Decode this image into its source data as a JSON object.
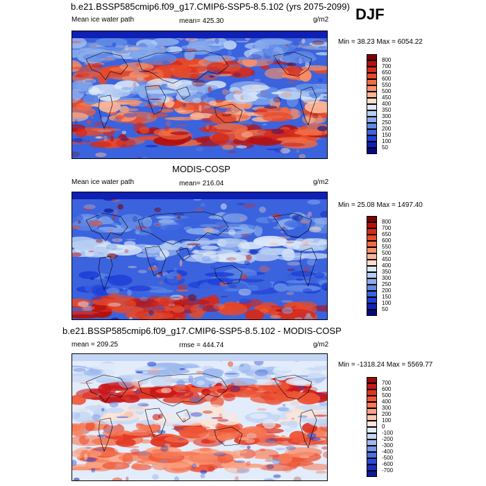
{
  "header": {
    "season": "DJF"
  },
  "panels": [
    {
      "title": "b.e21.BSSP585cmip6.f09_g17.CMIP6-SSP5-8.5.102 (yrs 2075-2099)",
      "left": "Mean ice water path",
      "center": "mean= 425.30",
      "units": "g/m2",
      "minmax": "Min =  38.23 Max = 6054.22",
      "colorbar": {
        "labels": [
          "800",
          "700",
          "650",
          "600",
          "550",
          "500",
          "450",
          "400",
          "350",
          "300",
          "250",
          "200",
          "150",
          "100",
          "50"
        ],
        "colors": [
          "#7f0000",
          "#b40f0f",
          "#d42a1c",
          "#e64a2a",
          "#f06a44",
          "#f7906a",
          "#fbb595",
          "#fdddc8",
          "#dce8f8",
          "#b5cdf2",
          "#8aaceb",
          "#6089e4",
          "#3b63de",
          "#1f3fd6",
          "#0f20b4",
          "#040a82"
        ]
      },
      "style": "hot"
    },
    {
      "title": "MODIS-COSP",
      "left": "Mean ice water path",
      "center": "mean= 216.04",
      "units": "g/m2",
      "minmax": "Min =  25.08 Max = 1497.40",
      "colorbar": {
        "labels": [
          "800",
          "700",
          "650",
          "600",
          "550",
          "500",
          "450",
          "400",
          "350",
          "300",
          "250",
          "200",
          "150",
          "100",
          "50"
        ],
        "colors": [
          "#7f0000",
          "#b40f0f",
          "#d42a1c",
          "#e64a2a",
          "#f06a44",
          "#f7906a",
          "#fbb595",
          "#fdddc8",
          "#dce8f8",
          "#b5cdf2",
          "#8aaceb",
          "#6089e4",
          "#3b63de",
          "#1f3fd6",
          "#0f20b4",
          "#040a82"
        ]
      },
      "style": "cold"
    },
    {
      "title": "b.e21.BSSP585cmip6.f09_g17.CMIP6-SSP5-8.5.102 - MODIS-COSP",
      "left": "mean = 209.25",
      "center": "rmse = 444.74",
      "units": "g/m2",
      "minmax": "Min = -1318.24 Max = 5569.77",
      "colorbar": {
        "labels": [
          "700",
          "600",
          "500",
          "400",
          "300",
          "200",
          "100",
          "0",
          "-100",
          "-200",
          "-300",
          "-400",
          "-500",
          "-600",
          "-700"
        ],
        "colors": [
          "#9a0a0a",
          "#c8161a",
          "#e0321f",
          "#ee5535",
          "#f67a56",
          "#faa282",
          "#fcc7ae",
          "#fde4d6",
          "#e2ecfa",
          "#c4d6f4",
          "#9db9ee",
          "#7497e6",
          "#4a70dd",
          "#2a4bd5",
          "#1630c4",
          "#0a1a9a"
        ]
      },
      "style": "diff"
    }
  ],
  "chart_data": [
    {
      "type": "heatmap",
      "title": "b.e21.BSSP585cmip6.f09_g17.CMIP6-SSP5-8.5.102 (yrs 2075-2099)",
      "variable": "Mean ice water path",
      "units": "g/m2",
      "mean": 425.3,
      "min": 38.23,
      "max": 6054.22,
      "levels": [
        50,
        100,
        150,
        200,
        250,
        300,
        350,
        400,
        450,
        500,
        550,
        600,
        650,
        700,
        800
      ]
    },
    {
      "type": "heatmap",
      "title": "MODIS-COSP",
      "variable": "Mean ice water path",
      "units": "g/m2",
      "mean": 216.04,
      "min": 25.08,
      "max": 1497.4,
      "levels": [
        50,
        100,
        150,
        200,
        250,
        300,
        350,
        400,
        450,
        500,
        550,
        600,
        650,
        700,
        800
      ]
    },
    {
      "type": "heatmap",
      "title": "b.e21.BSSP585cmip6.f09_g17.CMIP6-SSP5-8.5.102 - MODIS-COSP",
      "units": "g/m2",
      "mean": 209.25,
      "rmse": 444.74,
      "min": -1318.24,
      "max": 5569.77,
      "levels": [
        -700,
        -600,
        -500,
        -400,
        -300,
        -200,
        -100,
        0,
        100,
        200,
        300,
        400,
        500,
        600,
        700
      ]
    }
  ]
}
